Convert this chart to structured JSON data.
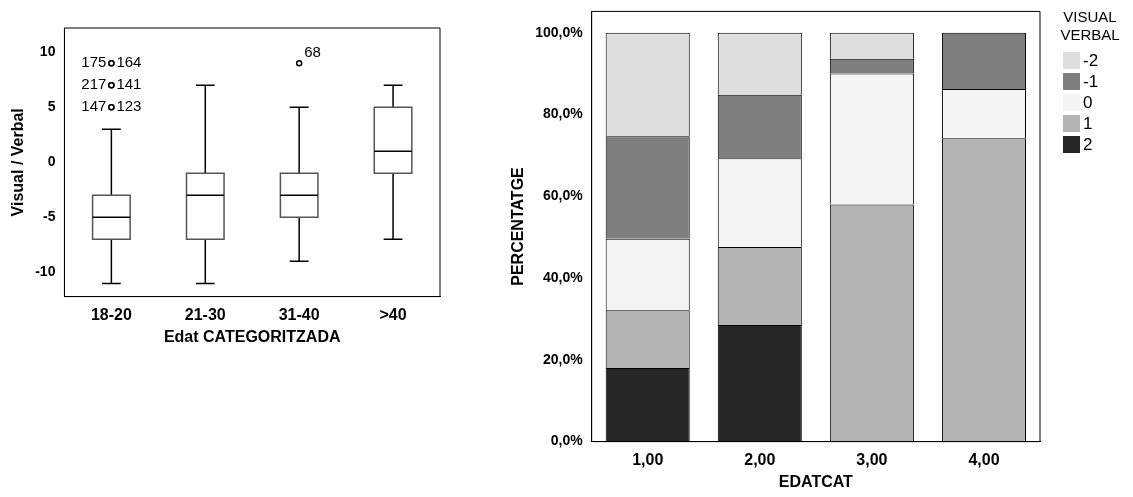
{
  "chart_data": [
    {
      "type": "box",
      "categories": [
        "18-20",
        "21-30",
        "31-40",
        ">40"
      ],
      "boxes": [
        {
          "low": -11,
          "q1": -7,
          "median": -5,
          "q3": -3,
          "high": 3,
          "outliers": [
            5,
            5,
            7,
            7,
            9,
            9
          ]
        },
        {
          "low": -11,
          "q1": -7,
          "median": -3,
          "q3": -1,
          "high": 7
        },
        {
          "low": -9,
          "q1": -5,
          "median": -3,
          "q3": -1,
          "high": 5,
          "outliers": [
            9
          ]
        },
        {
          "low": -7,
          "q1": -1,
          "median": 1,
          "q3": 5,
          "high": 7
        }
      ],
      "ylim": [
        -12.2,
        12.2
      ],
      "yticks": [
        -10,
        -5,
        0,
        5,
        10
      ],
      "ylabel": "Visual / Verbal",
      "xlabel": "Edat CATEGORITZADA",
      "grid": false,
      "annotations": [
        "147",
        "123",
        "217",
        "141",
        "175",
        "164",
        "68"
      ]
    },
    {
      "type": "bar",
      "stacked": true,
      "categories": [
        "1,00",
        "2,00",
        "3,00",
        "4,00"
      ],
      "series": [
        {
          "name": "2",
          "color": "#262626",
          "values": [
            18.0,
            28.5,
            0,
            0
          ]
        },
        {
          "name": "1",
          "color": "#b3b3b3",
          "values": [
            14.1,
            19.1,
            58.0,
            74.2
          ]
        },
        {
          "name": "0",
          "color": "#f4f4f4",
          "values": [
            17.5,
            21.7,
            32.0,
            12.0
          ]
        },
        {
          "name": "-1",
          "color": "#7f7f7f",
          "values": [
            25.1,
            15.5,
            3.6,
            13.8
          ]
        },
        {
          "name": "-2",
          "color": "#dedede",
          "values": [
            25.3,
            15.2,
            6.4,
            0
          ]
        }
      ],
      "ylim": [
        0,
        105.2
      ],
      "yticks": [
        {
          "value": 0,
          "label": "0,0%"
        },
        {
          "value": 20,
          "label": "20,0%"
        },
        {
          "value": 40,
          "label": "40,0%"
        },
        {
          "value": 60,
          "label": "60,0%"
        },
        {
          "value": 80,
          "label": "80,0%"
        },
        {
          "value": 100,
          "label": "100,0%"
        }
      ],
      "xlabel": "EDATCAT",
      "ylabel": "PERCENTATGE",
      "legend": "top right",
      "legend_title": "VISUAL VERBAL",
      "grid": false
    }
  ]
}
